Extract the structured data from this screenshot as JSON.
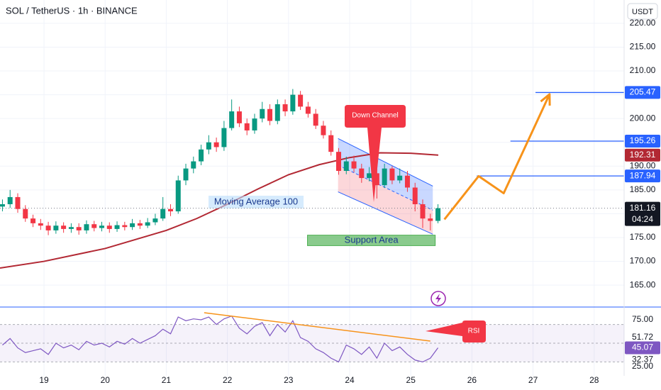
{
  "header": {
    "symbol": "SOL / TetherUS · 1h · BINANCE",
    "currency": "USDT"
  },
  "chart_data": [
    {
      "type": "candlestick",
      "x": [
        18.32,
        18.445,
        18.57,
        18.695,
        18.82,
        18.945,
        19.07,
        19.195,
        19.32,
        19.445,
        19.57,
        19.695,
        19.82,
        19.945,
        20.07,
        20.195,
        20.32,
        20.445,
        20.57,
        20.695,
        20.82,
        20.945,
        21.07,
        21.195,
        21.32,
        21.445,
        21.57,
        21.695,
        21.82,
        21.945,
        22.07,
        22.195,
        22.32,
        22.445,
        22.57,
        22.695,
        22.82,
        22.945,
        23.07,
        23.195,
        23.32,
        23.445,
        23.57,
        23.695,
        23.82,
        23.945,
        24.07,
        24.195,
        24.32,
        24.445,
        24.57,
        24.695,
        24.82,
        24.945,
        25.07,
        25.195,
        25.32,
        25.445
      ],
      "open": [
        181.5,
        182,
        183.5,
        181,
        179,
        178,
        177.5,
        176.5,
        177.5,
        176.8,
        177.2,
        176.5,
        177.8,
        177,
        177.5,
        176.8,
        177.6,
        177.2,
        178,
        177.5,
        178.2,
        179,
        181,
        180.5,
        187,
        189.5,
        191,
        193.5,
        195,
        194,
        198,
        201.5,
        199,
        197.5,
        200,
        202,
        199.5,
        203,
        201.5,
        205,
        202.5,
        201,
        198.5,
        196.5,
        193,
        189,
        191,
        189.5,
        187.5,
        188.5,
        186,
        189.5,
        187,
        188,
        185.5,
        182,
        179,
        178.5
      ],
      "high": [
        183,
        185,
        184.3,
        181.8,
        179.8,
        178.9,
        178.3,
        178.4,
        178.2,
        178,
        178,
        178.6,
        178.5,
        178.3,
        178.2,
        178.4,
        178.3,
        178.9,
        178.7,
        179.1,
        180,
        183.5,
        182,
        188,
        190.5,
        192,
        194.5,
        196.5,
        196,
        199.5,
        204,
        202.5,
        200,
        201,
        203.5,
        203,
        204,
        204,
        206.2,
        205.8,
        203.5,
        202,
        199.5,
        197.5,
        193.8,
        192,
        192.2,
        190.5,
        189.8,
        189.5,
        190.5,
        190,
        189.5,
        189,
        186.5,
        183,
        180,
        182
      ],
      "low": [
        180.5,
        181.2,
        180.2,
        178.3,
        177.2,
        176.6,
        175.5,
        175.8,
        176,
        176,
        175.6,
        175.8,
        176.3,
        176.3,
        176,
        176.2,
        176.5,
        176.6,
        176.8,
        177,
        177.6,
        178.5,
        179.5,
        180,
        186,
        188.5,
        190.2,
        192.5,
        193,
        193.2,
        197.5,
        198.2,
        196.5,
        196.8,
        199.2,
        198.6,
        198.8,
        200.5,
        200.8,
        201.8,
        200.2,
        197.8,
        195.8,
        192.2,
        188.2,
        188.3,
        188.7,
        186.5,
        186.8,
        183.2,
        185.4,
        186.2,
        186.4,
        184.6,
        180.5,
        177,
        176.5,
        178
      ],
      "close": [
        182,
        183.5,
        181,
        179,
        178,
        177.5,
        176.5,
        177.5,
        176.8,
        177.2,
        176.5,
        177.8,
        177,
        177.5,
        176.8,
        177.6,
        177.2,
        178,
        177.5,
        178.2,
        179,
        181,
        180.5,
        187,
        189.5,
        191,
        193.5,
        195,
        194,
        198,
        201.5,
        199,
        197.5,
        200,
        202,
        199.5,
        203,
        201.5,
        205,
        202.5,
        201,
        198.5,
        196.5,
        193,
        189,
        191,
        189.5,
        187.5,
        188.5,
        186,
        189.5,
        187,
        188,
        185.5,
        182,
        179,
        178.5,
        181.16
      ],
      "last_label": "181.16",
      "countdown": "04:24",
      "up_color": "#089981",
      "down_color": "#f23645",
      "xlim": [
        18.28,
        28.49
      ],
      "xticks": [
        19,
        20,
        21,
        22,
        23,
        24,
        25,
        26,
        27,
        28
      ],
      "ylim": [
        160.4,
        224.9
      ],
      "yticks": [
        {
          "value": 165,
          "label": "165.00"
        },
        {
          "value": 170,
          "label": "170.00"
        },
        {
          "value": 175,
          "label": "175.00"
        },
        {
          "value": 180,
          "label": "180.00"
        },
        {
          "value": 185,
          "label": "185.00"
        },
        {
          "value": 190,
          "label": "190.00"
        },
        {
          "value": 195,
          "label": "195.00"
        },
        {
          "value": 200,
          "label": "200.00"
        },
        {
          "value": 205,
          "label": "205.00"
        },
        {
          "value": 210,
          "label": "210.00"
        },
        {
          "value": 215,
          "label": "215.00"
        },
        {
          "value": 220,
          "label": "220.00"
        }
      ],
      "moving_average": {
        "name": "Moving Average 100",
        "color": "#b22833",
        "x": [
          18.28,
          19,
          20,
          21,
          21.5,
          22,
          22.5,
          23,
          23.5,
          24,
          24.5,
          25,
          25.45
        ],
        "values": [
          168.6,
          170,
          172.7,
          176.5,
          179,
          182,
          185.2,
          188.2,
          190.3,
          191.8,
          192.8,
          192.7,
          192.31
        ],
        "last_label": "192.31"
      },
      "levels": [
        {
          "value": 205.47,
          "label": "205.47",
          "start": 27.04
        },
        {
          "value": 195.26,
          "label": "195.26",
          "start": 26.63
        },
        {
          "value": 187.94,
          "label": "187.94",
          "start": 26.08
        }
      ],
      "level_color": "#2962ff",
      "channel": {
        "label": "Down Channel",
        "x": [
          23.81,
          25.36
        ],
        "upper": [
          195.8,
          185.8
        ],
        "lower": [
          184.6,
          175.7
        ]
      },
      "support": {
        "label": "Support Area",
        "x": [
          23.31,
          25.4
        ],
        "y": [
          173.3,
          175.5
        ]
      },
      "projection": {
        "color": "#f7931a",
        "x": [
          25.55,
          26.11,
          26.52,
          27.27
        ],
        "values": [
          178.8,
          187.9,
          184.3,
          205.1
        ]
      }
    },
    {
      "type": "line",
      "title": "RSI",
      "color": "#7e57c2",
      "x": [
        18.32,
        18.445,
        18.57,
        18.695,
        18.82,
        18.945,
        19.07,
        19.195,
        19.32,
        19.445,
        19.57,
        19.695,
        19.82,
        19.945,
        20.07,
        20.195,
        20.32,
        20.445,
        20.57,
        20.695,
        20.82,
        20.945,
        21.07,
        21.195,
        21.32,
        21.445,
        21.57,
        21.695,
        21.82,
        21.945,
        22.07,
        22.195,
        22.32,
        22.445,
        22.57,
        22.695,
        22.82,
        22.945,
        23.07,
        23.195,
        23.32,
        23.445,
        23.57,
        23.695,
        23.82,
        23.945,
        24.07,
        24.195,
        24.32,
        24.445,
        24.57,
        24.695,
        24.82,
        24.945,
        25.07,
        25.195,
        25.32,
        25.445
      ],
      "values": [
        48,
        55,
        45,
        40,
        42,
        44,
        38,
        50,
        45,
        48,
        43,
        52,
        48,
        50,
        46,
        52,
        49,
        55,
        50,
        54,
        58,
        65,
        60,
        78,
        74,
        76,
        75,
        78,
        70,
        76,
        79,
        66,
        60,
        68,
        72,
        58,
        70,
        62,
        74,
        56,
        52,
        44,
        40,
        34,
        30,
        48,
        44,
        38,
        46,
        34,
        50,
        42,
        46,
        38,
        32,
        30,
        34,
        45.07
      ],
      "last_label": "45.07",
      "xlim": [
        18.28,
        28.49
      ],
      "ylim": [
        18.9,
        87.9
      ],
      "yticks": [
        {
          "value": 75,
          "label": "75.00"
        },
        {
          "value": 25,
          "label": "25.00"
        }
      ],
      "bands": [
        70,
        50,
        30
      ],
      "levels": [
        {
          "value": 51.72,
          "label": "51.72"
        },
        {
          "value": 32.37,
          "label": "32.37"
        }
      ],
      "trendline": {
        "color": "#f7931a",
        "x": [
          21.62,
          25.32
        ],
        "values": [
          82.6,
          52.3
        ]
      }
    }
  ]
}
